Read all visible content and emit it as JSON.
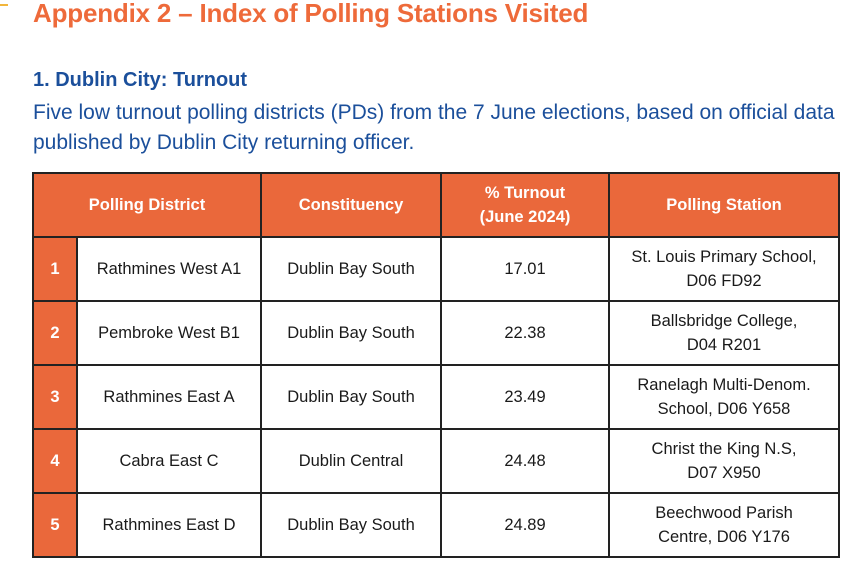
{
  "heading": "Appendix 2 – Index of Polling Stations Visited",
  "section": {
    "title": "1. Dublin City: Turnout",
    "intro": "Five low turnout polling districts (PDs) from the 7 June elections, based on official data published by Dublin City returning officer."
  },
  "table": {
    "headers": {
      "district": "Polling District",
      "constituency": "Constituency",
      "turnout_line1": "% Turnout",
      "turnout_line2": "(June 2024)",
      "station": "Polling Station"
    },
    "rows": [
      {
        "n": "1",
        "district": "Rathmines West A1",
        "constituency": "Dublin Bay South",
        "turnout": "17.01",
        "station1": "St. Louis Primary School,",
        "station2": "D06 FD92"
      },
      {
        "n": "2",
        "district": "Pembroke West B1",
        "constituency": "Dublin Bay South",
        "turnout": "22.38",
        "station1": "Ballsbridge College,",
        "station2": "D04 R201"
      },
      {
        "n": "3",
        "district": "Rathmines East A",
        "constituency": "Dublin Bay South",
        "turnout": "23.49",
        "station1": "Ranelagh Multi-Denom.",
        "station2": "School, D06 Y658"
      },
      {
        "n": "4",
        "district": "Cabra East C",
        "constituency": "Dublin Central",
        "turnout": "24.48",
        "station1": "Christ the King N.S,",
        "station2": "D07 X950"
      },
      {
        "n": "5",
        "district": "Rathmines East D",
        "constituency": "Dublin Bay South",
        "turnout": "24.89",
        "station1": "Beechwood Parish",
        "station2": "Centre, D06 Y176"
      }
    ]
  }
}
